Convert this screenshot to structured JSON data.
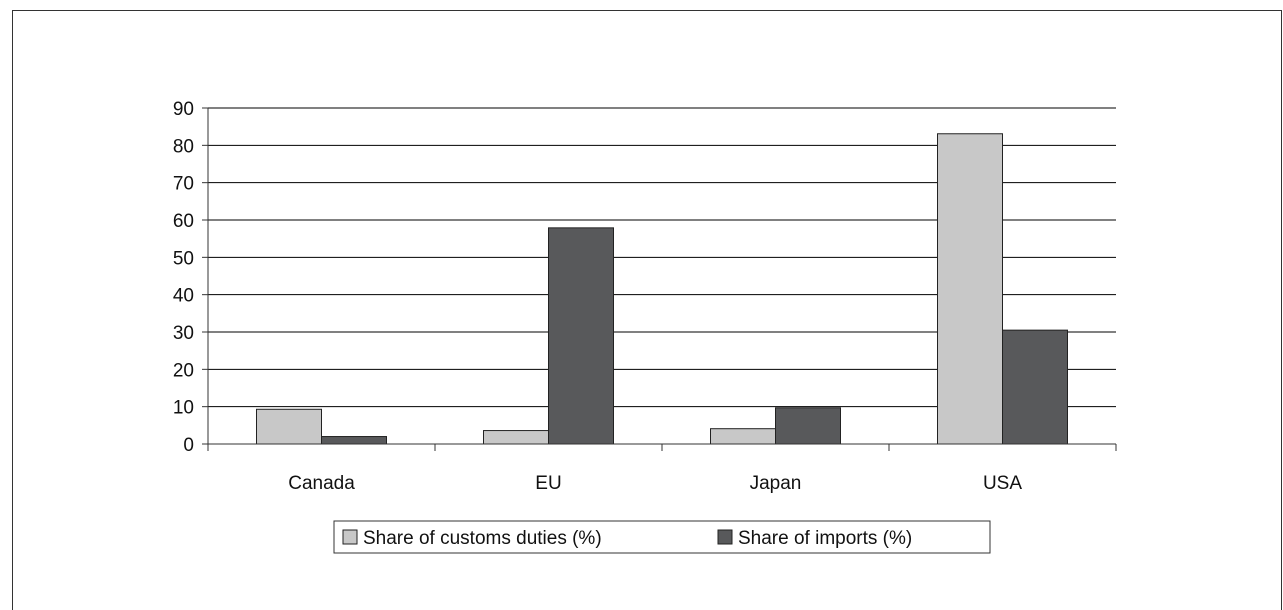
{
  "chart_data": {
    "type": "bar",
    "categories": [
      "Canada",
      "EU",
      "Japan",
      "USA"
    ],
    "series": [
      {
        "name": "Share of customs duties (%)",
        "values": [
          9.3,
          3.6,
          4.1,
          83.1
        ],
        "color": "#c8c8c8"
      },
      {
        "name": "Share of imports (%)",
        "values": [
          2.0,
          57.9,
          9.7,
          30.5
        ],
        "color": "#58595b"
      }
    ],
    "title": "",
    "xlabel": "",
    "ylabel": "",
    "ylim": [
      0,
      90
    ],
    "yticks": [
      "0",
      "10",
      "20",
      "30",
      "40",
      "50",
      "60",
      "70",
      "80",
      "90"
    ],
    "grid": "horizontal",
    "legend_position": "bottom",
    "axis_color": "#333333",
    "grid_color": "#000000"
  }
}
